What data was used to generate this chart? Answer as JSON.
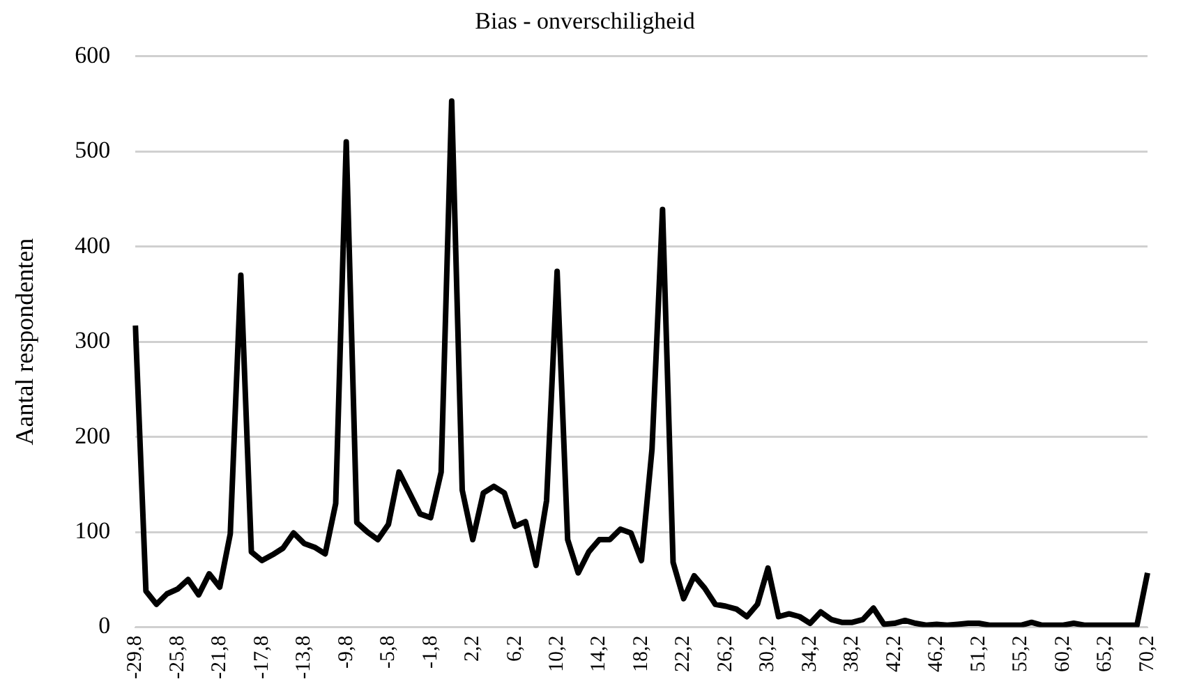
{
  "chart_data": {
    "type": "line",
    "title": "Bias - onverschiligheid",
    "ylabel": "Aantal respondenten",
    "categories": [
      "-29,8",
      null,
      null,
      null,
      "-25,8",
      null,
      null,
      null,
      "-21,8",
      null,
      null,
      null,
      "-17,8",
      null,
      null,
      null,
      "-13,8",
      null,
      null,
      null,
      "-9,8",
      null,
      null,
      null,
      "-5,8",
      null,
      null,
      null,
      "-1,8",
      null,
      null,
      null,
      "2,2",
      null,
      null,
      null,
      "6,2",
      null,
      null,
      null,
      "10,2",
      null,
      null,
      null,
      "14,2",
      null,
      null,
      null,
      "18,2",
      null,
      null,
      null,
      "22,2",
      null,
      null,
      null,
      "26,2",
      null,
      null,
      null,
      "30,2",
      null,
      null,
      null,
      "34,2",
      null,
      null,
      null,
      "38,2",
      null,
      null,
      null,
      "42,2",
      null,
      null,
      null,
      "46,2",
      null,
      null,
      null,
      "51,2",
      null,
      null,
      null,
      "55,2",
      null,
      null,
      null,
      "60,2",
      null,
      null,
      null,
      "65,2",
      null,
      null,
      null,
      "70,2"
    ],
    "series": [
      {
        "color": "#000000",
        "values": [
          317,
          38,
          24,
          35,
          40,
          50,
          34,
          56,
          42,
          98,
          370,
          79,
          70,
          76,
          83,
          99,
          88,
          84,
          77,
          130,
          510,
          110,
          100,
          92,
          108,
          163,
          141,
          119,
          115,
          163,
          553,
          144,
          92,
          141,
          148,
          141,
          106,
          111,
          65,
          133,
          374,
          92,
          57,
          79,
          92,
          92,
          103,
          99,
          70,
          187,
          439,
          68,
          30,
          54,
          41,
          24,
          22,
          19,
          11,
          24,
          62,
          11,
          14,
          11,
          4,
          16,
          8,
          5,
          5,
          8,
          20,
          3,
          4,
          7,
          4,
          2,
          3,
          2,
          3,
          4,
          4,
          2,
          2,
          2,
          2,
          5,
          2,
          2,
          2,
          4,
          2,
          2,
          2,
          2,
          2,
          2,
          57
        ]
      }
    ],
    "ylim": [
      0,
      600
    ],
    "yticks": [
      0,
      100,
      200,
      300,
      400,
      500,
      600
    ],
    "grid": "y",
    "legend": false,
    "marker": "none",
    "line_style": "solid"
  }
}
